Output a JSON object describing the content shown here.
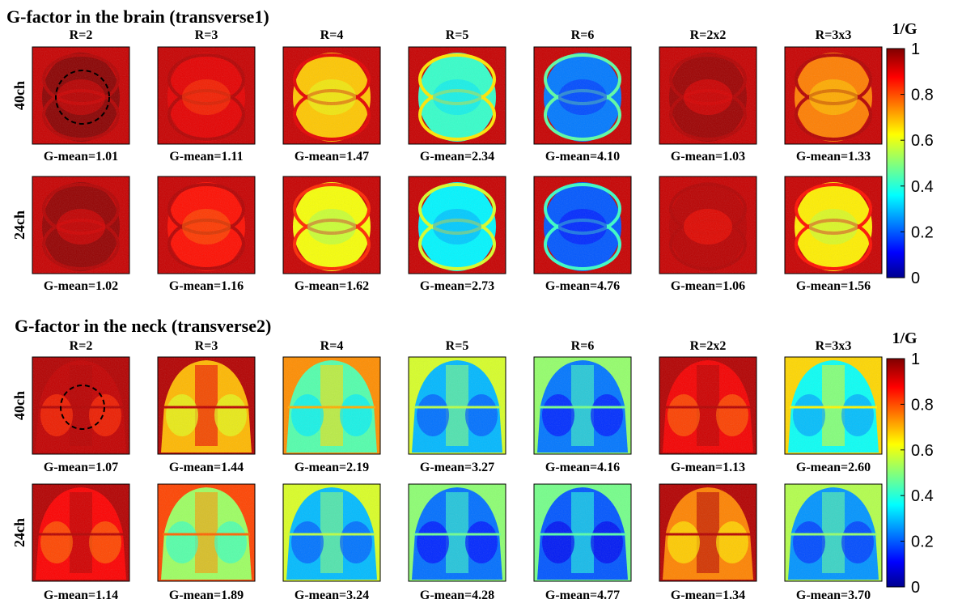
{
  "chart_data": [
    {
      "type": "heatmap",
      "title": "G-factor in the brain (transverse1)",
      "columns": [
        "R=2",
        "R=3",
        "R=4",
        "R=5",
        "R=6",
        "R=2x2",
        "R=3x3"
      ],
      "rows": [
        {
          "label": "40ch",
          "g_mean_labels": [
            "G-mean=1.01",
            "G-mean=1.11",
            "G-mean=1.47",
            "G-mean=2.34",
            "G-mean=4.10",
            "G-mean=1.03",
            "G-mean=1.33"
          ],
          "g_mean": [
            1.01,
            1.11,
            1.47,
            2.34,
            4.1,
            1.03,
            1.33
          ]
        },
        {
          "label": "24ch",
          "g_mean_labels": [
            "G-mean=1.02",
            "G-mean=1.16",
            "G-mean=1.62",
            "G-mean=2.73",
            "G-mean=4.76",
            "G-mean=1.06",
            "G-mean=1.56"
          ],
          "g_mean": [
            1.02,
            1.16,
            1.62,
            2.73,
            4.76,
            1.06,
            1.56
          ]
        }
      ],
      "colorbar": {
        "label": "1/G",
        "range": [
          0,
          1
        ],
        "ticks": [
          "1",
          "0.8",
          "0.6",
          "0.4",
          "0.2",
          "0"
        ],
        "colormap": "jet"
      }
    },
    {
      "type": "heatmap",
      "title": "G-factor in the neck (transverse2)",
      "columns": [
        "R=2",
        "R=3",
        "R=4",
        "R=5",
        "R=6",
        "R=2x2",
        "R=3x3"
      ],
      "rows": [
        {
          "label": "40ch",
          "g_mean_labels": [
            "G-mean=1.07",
            "G-mean=1.44",
            "G-mean=2.19",
            "G-mean=3.27",
            "G-mean=4.16",
            "G-mean=1.13",
            "G-mean=2.60"
          ],
          "g_mean": [
            1.07,
            1.44,
            2.19,
            3.27,
            4.16,
            1.13,
            2.6
          ]
        },
        {
          "label": "24ch",
          "g_mean_labels": [
            "G-mean=1.14",
            "G-mean=1.89",
            "G-mean=3.24",
            "G-mean=4.28",
            "G-mean=4.77",
            "G-mean=1.34",
            "G-mean=3.70"
          ],
          "g_mean": [
            1.14,
            1.89,
            3.24,
            4.28,
            4.77,
            1.34,
            3.7
          ]
        }
      ],
      "colorbar": {
        "label": "1/G",
        "range": [
          0,
          1
        ],
        "ticks": [
          "1",
          "0.8",
          "0.6",
          "0.4",
          "0.2",
          "0"
        ],
        "colormap": "jet"
      }
    }
  ]
}
